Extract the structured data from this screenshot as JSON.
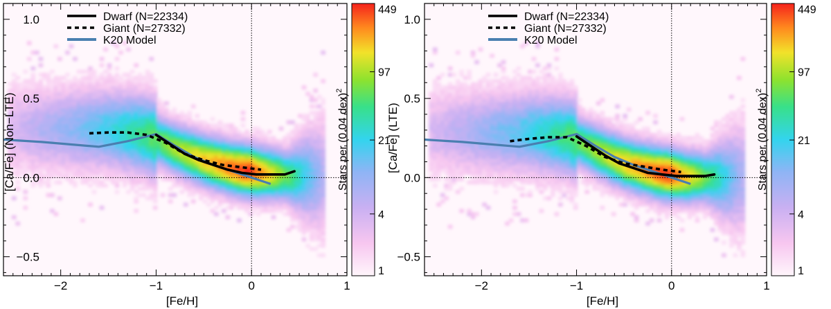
{
  "chart_data": [
    {
      "type": "density-scatter",
      "panel": "left",
      "xlabel": "[Fe/H]",
      "ylabel": "[Ca/Fe] (Non−LTE)",
      "xlim": [
        -2.6,
        1.0
      ],
      "ylim": [
        -0.62,
        1.1
      ],
      "xticks": [
        -2,
        -1,
        0,
        1
      ],
      "xtick_labels": [
        "−2",
        "−1",
        "0",
        "1"
      ],
      "yticks": [
        -0.5,
        0.0,
        0.5,
        1.0
      ],
      "ytick_labels": [
        "−0.5",
        "0.0",
        "0.5",
        "1.0"
      ],
      "reference_lines": {
        "x": 0,
        "y": 0
      },
      "legend": [
        {
          "label": "Dwarf  (N=22334)",
          "style": "solid",
          "color": "#000000"
        },
        {
          "label": "Giant  (N=27332)",
          "style": "dotted",
          "color": "#000000"
        },
        {
          "label": "K20 Model",
          "style": "solid",
          "color": "#4a7fb0"
        }
      ],
      "series": [
        {
          "name": "Dwarf",
          "x": [
            -1.0,
            -0.85,
            -0.7,
            -0.55,
            -0.4,
            -0.25,
            -0.1,
            0.05,
            0.2,
            0.35,
            0.45
          ],
          "y": [
            0.27,
            0.21,
            0.15,
            0.11,
            0.08,
            0.05,
            0.03,
            0.02,
            0.02,
            0.02,
            0.04
          ]
        },
        {
          "name": "Giant",
          "x": [
            -1.7,
            -1.5,
            -1.3,
            -1.1,
            -0.9,
            -0.7,
            -0.5,
            -0.3,
            -0.1,
            0.1
          ],
          "y": [
            0.28,
            0.285,
            0.285,
            0.27,
            0.22,
            0.15,
            0.11,
            0.08,
            0.065,
            0.05
          ]
        },
        {
          "name": "K20 Model",
          "x": [
            -2.6,
            -2.2,
            -1.9,
            -1.6,
            -1.3,
            -1.0,
            -0.8,
            -0.6,
            -0.4,
            -0.2,
            0.0,
            0.2
          ],
          "y": [
            0.24,
            0.225,
            0.21,
            0.195,
            0.23,
            0.275,
            0.2,
            0.13,
            0.08,
            0.04,
            0.0,
            -0.04
          ]
        }
      ],
      "density": {
        "ridge_x": [
          -2.3,
          -1.9,
          -1.5,
          -1.1,
          -0.8,
          -0.5,
          -0.2,
          0.1,
          0.4,
          0.6
        ],
        "ridge_y": [
          0.3,
          0.3,
          0.3,
          0.26,
          0.17,
          0.1,
          0.05,
          0.02,
          0.0,
          0.0
        ],
        "peak_feh": -0.05
      },
      "colorbar": {
        "label": "Stars per (0.04 dex)",
        "label_sup": "2",
        "ticks": [
          "1",
          "4",
          "21",
          "97",
          "449"
        ],
        "scale": "log"
      }
    },
    {
      "type": "density-scatter",
      "panel": "right",
      "xlabel": "[Fe/H]",
      "ylabel": "[Ca/Fe] (LTE)",
      "xlim": [
        -2.6,
        1.0
      ],
      "ylim": [
        -0.62,
        1.1
      ],
      "xticks": [
        -2,
        -1,
        0,
        1
      ],
      "xtick_labels": [
        "−2",
        "−1",
        "0",
        "1"
      ],
      "yticks": [
        -0.5,
        0.0,
        0.5,
        1.0
      ],
      "ytick_labels": [
        "−0.5",
        "0.0",
        "0.5",
        "1.0"
      ],
      "reference_lines": {
        "x": 0,
        "y": 0
      },
      "legend": [
        {
          "label": "Dwarf  (N=22334)",
          "style": "solid",
          "color": "#000000"
        },
        {
          "label": "Giant  (N=27332)",
          "style": "dotted",
          "color": "#000000"
        },
        {
          "label": "K20 Model",
          "style": "solid",
          "color": "#4a7fb0"
        }
      ],
      "series": [
        {
          "name": "Dwarf",
          "x": [
            -1.0,
            -0.85,
            -0.7,
            -0.55,
            -0.4,
            -0.25,
            -0.1,
            0.05,
            0.2,
            0.35,
            0.45
          ],
          "y": [
            0.26,
            0.2,
            0.14,
            0.09,
            0.06,
            0.03,
            0.02,
            0.01,
            0.01,
            0.01,
            0.02
          ]
        },
        {
          "name": "Giant",
          "x": [
            -1.7,
            -1.5,
            -1.3,
            -1.1,
            -0.9,
            -0.7,
            -0.5,
            -0.3,
            -0.1,
            0.1
          ],
          "y": [
            0.23,
            0.245,
            0.255,
            0.255,
            0.2,
            0.13,
            0.09,
            0.07,
            0.05,
            0.035
          ]
        },
        {
          "name": "K20 Model",
          "x": [
            -2.6,
            -2.2,
            -1.9,
            -1.6,
            -1.3,
            -1.0,
            -0.8,
            -0.6,
            -0.4,
            -0.2,
            0.0,
            0.2
          ],
          "y": [
            0.24,
            0.225,
            0.21,
            0.195,
            0.23,
            0.275,
            0.2,
            0.13,
            0.08,
            0.04,
            0.0,
            -0.04
          ]
        }
      ],
      "density": {
        "ridge_x": [
          -2.3,
          -1.9,
          -1.5,
          -1.1,
          -0.8,
          -0.5,
          -0.2,
          0.1,
          0.4,
          0.6
        ],
        "ridge_y": [
          0.28,
          0.28,
          0.28,
          0.25,
          0.16,
          0.08,
          0.03,
          0.0,
          -0.01,
          -0.01
        ],
        "peak_feh": -0.05
      },
      "colorbar": {
        "label": "Stars per (0.04 dex)",
        "label_sup": "2",
        "ticks": [
          "1",
          "4",
          "21",
          "97",
          "449"
        ],
        "scale": "log"
      }
    }
  ]
}
